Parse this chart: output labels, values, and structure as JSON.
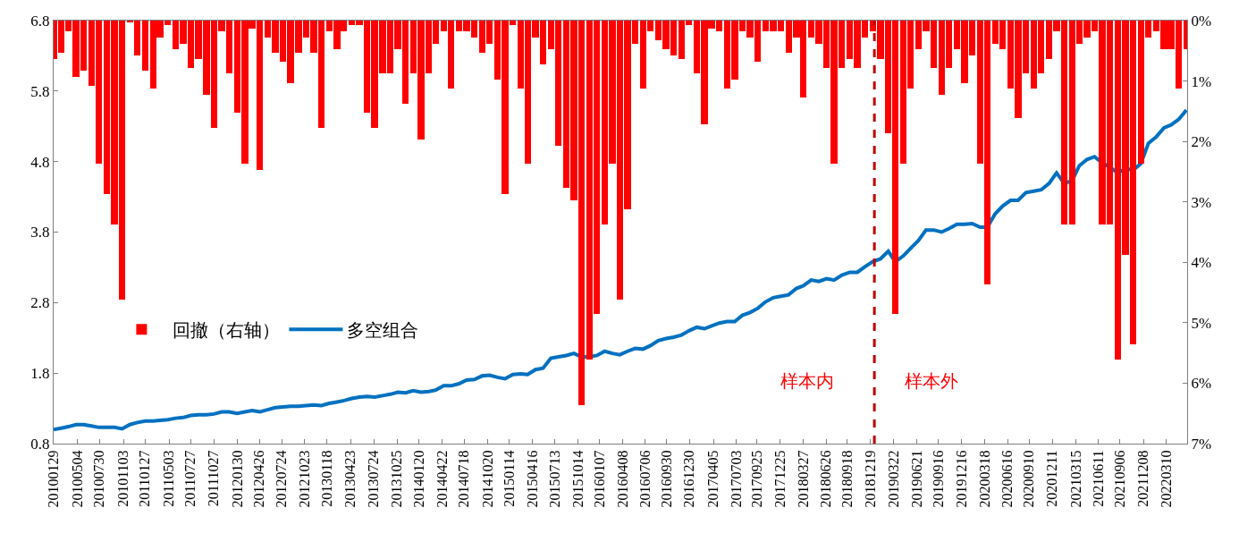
{
  "chart_data": {
    "type": "bar",
    "x": [
      "2010-01-29",
      "2010-02-28",
      "2010-03-28",
      "2010-04-28",
      "2010-05-28",
      "2010-06-28",
      "2010-07-28",
      "2010-08-28",
      "2010-09-28",
      "2010-10-28",
      "2010-11-28",
      "2010-12-28",
      "2011-01-28",
      "2011-02-28",
      "2011-03-28",
      "2011-04-28",
      "2011-05-28",
      "2011-06-28",
      "2011-07-28",
      "2011-08-28",
      "2011-09-28",
      "2011-10-28",
      "2011-11-28",
      "2011-12-28",
      "2012-01-28",
      "2012-02-28",
      "2012-03-28",
      "2012-04-28",
      "2012-05-28",
      "2012-06-28",
      "2012-07-28",
      "2012-08-28",
      "2012-09-28",
      "2012-10-28",
      "2012-11-28",
      "2012-12-28",
      "2013-01-28",
      "2013-02-28",
      "2013-03-28",
      "2013-04-28",
      "2013-05-28",
      "2013-06-28",
      "2013-07-28",
      "2013-08-28",
      "2013-09-28",
      "2013-10-28",
      "2013-11-28",
      "2013-12-28",
      "2014-01-28",
      "2014-02-28",
      "2014-03-28",
      "2014-04-28",
      "2014-05-28",
      "2014-06-28",
      "2014-07-28",
      "2014-08-28",
      "2014-09-28",
      "2014-10-28",
      "2014-11-28",
      "2014-12-28",
      "2015-01-28",
      "2015-02-28",
      "2015-03-28",
      "2015-04-28",
      "2015-05-28",
      "2015-06-28",
      "2015-07-28",
      "2015-08-28",
      "2015-09-28",
      "2015-10-28",
      "2015-11-28",
      "2015-12-28",
      "2016-01-28",
      "2016-02-28",
      "2016-03-28",
      "2016-04-28",
      "2016-05-28",
      "2016-06-28",
      "2016-07-28",
      "2016-08-28",
      "2016-09-28",
      "2016-10-28",
      "2016-11-28",
      "2016-12-28",
      "2017-01-28",
      "2017-02-28",
      "2017-03-28",
      "2017-04-28",
      "2017-05-28",
      "2017-06-28",
      "2017-07-28",
      "2017-08-28",
      "2017-09-28",
      "2017-10-28",
      "2017-11-28",
      "2017-12-28",
      "2018-01-28",
      "2018-02-28",
      "2018-03-28",
      "2018-04-28",
      "2018-05-28",
      "2018-06-28",
      "2018-07-28",
      "2018-08-28",
      "2018-09-28",
      "2018-10-28",
      "2018-11-28",
      "2018-12-28",
      "2019-01-28",
      "2019-02-28",
      "2019-03-28",
      "2019-04-28",
      "2019-05-28",
      "2019-06-28",
      "2019-07-28",
      "2019-08-28",
      "2019-09-28",
      "2019-10-28",
      "2019-11-28",
      "2019-12-28",
      "2020-01-28",
      "2020-02-28",
      "2020-03-28",
      "2020-04-28",
      "2020-05-28",
      "2020-06-28",
      "2020-07-28",
      "2020-08-28",
      "2020-09-28",
      "2020-10-28",
      "2020-11-28",
      "2020-12-28",
      "2021-01-28",
      "2021-02-28",
      "2021-03-28",
      "2021-04-28",
      "2021-05-28",
      "2021-06-28",
      "2021-07-28",
      "2021-08-28",
      "2021-09-28",
      "2021-10-28",
      "2021-11-28",
      "2021-12-28",
      "2022-01-28",
      "2022-02-28",
      "2022-03-28",
      "2022-04-28",
      "2022-05-28"
    ],
    "series": [
      {
        "name": "回撤（右轴）",
        "axis": "y2",
        "color": "#ff0000",
        "values": [
          0.63,
          0.53,
          0.18,
          0.93,
          0.83,
          1.08,
          2.37,
          2.87,
          3.37,
          4.61,
          0.03,
          0.58,
          0.83,
          1.13,
          0.28,
          0.08,
          0.48,
          0.38,
          0.78,
          0.63,
          1.23,
          1.77,
          0.18,
          0.88,
          1.52,
          2.37,
          0.13,
          2.47,
          0.28,
          0.53,
          0.68,
          1.03,
          0.53,
          0.28,
          0.53,
          1.77,
          0.18,
          0.48,
          0.18,
          0.08,
          0.08,
          1.52,
          1.77,
          0.88,
          0.88,
          0.48,
          1.38,
          0.88,
          1.97,
          0.88,
          0.38,
          0.18,
          1.13,
          0.18,
          0.18,
          0.28,
          0.53,
          0.38,
          0.98,
          2.87,
          0.08,
          1.13,
          2.37,
          0.28,
          0.73,
          0.48,
          2.07,
          2.77,
          2.97,
          6.36,
          5.61,
          4.86,
          3.37,
          2.37,
          4.61,
          3.12,
          0.38,
          1.13,
          0.18,
          0.33,
          0.48,
          0.58,
          0.63,
          0.08,
          0.88,
          1.72,
          0.13,
          0.18,
          1.13,
          0.98,
          0.18,
          0.28,
          0.68,
          0.18,
          0.18,
          0.18,
          0.53,
          0.28,
          1.28,
          0.28,
          0.38,
          0.78,
          2.37,
          0.78,
          0.63,
          0.78,
          0.28,
          0.18,
          0.63,
          1.87,
          4.86,
          2.37,
          1.13,
          0.48,
          0.18,
          0.78,
          1.23,
          0.78,
          0.48,
          1.03,
          0.58,
          2.37,
          4.36,
          0.38,
          0.48,
          1.13,
          1.62,
          0.88,
          1.13,
          0.88,
          0.63,
          0.18,
          3.37,
          3.37,
          0.38,
          0.28,
          0.18,
          3.37,
          3.37,
          5.61,
          3.87,
          5.36,
          2.37,
          0.28,
          0.18,
          0.48,
          0.48,
          1.13,
          0.48
        ]
      },
      {
        "name": "多空组合",
        "type": "line",
        "color": "#0070c0",
        "values": [
          1.0,
          1.02,
          1.04,
          1.07,
          1.07,
          1.05,
          1.03,
          1.03,
          1.03,
          1.01,
          1.07,
          1.1,
          1.12,
          1.12,
          1.13,
          1.14,
          1.16,
          1.17,
          1.2,
          1.21,
          1.21,
          1.22,
          1.25,
          1.25,
          1.23,
          1.25,
          1.27,
          1.25,
          1.28,
          1.31,
          1.32,
          1.33,
          1.33,
          1.34,
          1.35,
          1.34,
          1.37,
          1.39,
          1.41,
          1.44,
          1.46,
          1.47,
          1.46,
          1.48,
          1.5,
          1.53,
          1.52,
          1.55,
          1.53,
          1.54,
          1.56,
          1.62,
          1.62,
          1.65,
          1.7,
          1.71,
          1.76,
          1.77,
          1.74,
          1.72,
          1.78,
          1.79,
          1.78,
          1.85,
          1.87,
          2.01,
          2.03,
          2.05,
          2.08,
          2.03,
          2.03,
          2.05,
          2.11,
          2.08,
          2.06,
          2.11,
          2.15,
          2.14,
          2.19,
          2.26,
          2.29,
          2.31,
          2.34,
          2.4,
          2.45,
          2.43,
          2.47,
          2.51,
          2.53,
          2.53,
          2.62,
          2.66,
          2.72,
          2.81,
          2.87,
          2.89,
          2.91,
          3.0,
          3.04,
          3.12,
          3.1,
          3.14,
          3.12,
          3.19,
          3.23,
          3.23,
          3.31,
          3.38,
          3.42,
          3.53,
          3.38,
          3.46,
          3.57,
          3.68,
          3.83,
          3.83,
          3.8,
          3.85,
          3.91,
          3.91,
          3.92,
          3.87,
          3.87,
          4.06,
          4.17,
          4.25,
          4.25,
          4.36,
          4.38,
          4.4,
          4.49,
          4.64,
          4.49,
          4.53,
          4.74,
          4.83,
          4.87,
          4.78,
          4.72,
          4.64,
          4.7,
          4.68,
          4.77,
          5.06,
          5.15,
          5.28,
          5.32,
          5.4,
          5.53
        ]
      }
    ],
    "xlim": [
      "2010-01-29",
      "2022-05-31"
    ],
    "xticks": [
      {
        "value": "2010-01-29",
        "label": "20100129"
      },
      {
        "value": "2010-05-04",
        "label": "20100504"
      },
      {
        "value": "2010-07-30",
        "label": "20100730"
      },
      {
        "value": "2010-11-03",
        "label": "20101103"
      },
      {
        "value": "2011-01-27",
        "label": "20110127"
      },
      {
        "value": "2011-05-03",
        "label": "20110503"
      },
      {
        "value": "2011-07-27",
        "label": "20110727"
      },
      {
        "value": "2011-10-27",
        "label": "20111027"
      },
      {
        "value": "2012-01-30",
        "label": "20120130"
      },
      {
        "value": "2012-04-26",
        "label": "20120426"
      },
      {
        "value": "2012-07-24",
        "label": "20120724"
      },
      {
        "value": "2012-10-23",
        "label": "20121023"
      },
      {
        "value": "2013-01-18",
        "label": "20130118"
      },
      {
        "value": "2013-04-23",
        "label": "20130423"
      },
      {
        "value": "2013-07-24",
        "label": "20130724"
      },
      {
        "value": "2013-10-25",
        "label": "20131025"
      },
      {
        "value": "2014-01-20",
        "label": "20140120"
      },
      {
        "value": "2014-04-22",
        "label": "20140422"
      },
      {
        "value": "2014-07-18",
        "label": "20140718"
      },
      {
        "value": "2014-10-20",
        "label": "20141020"
      },
      {
        "value": "2015-01-14",
        "label": "20150114"
      },
      {
        "value": "2015-04-16",
        "label": "20150416"
      },
      {
        "value": "2015-07-13",
        "label": "20150713"
      },
      {
        "value": "2015-10-14",
        "label": "20151014"
      },
      {
        "value": "2016-01-07",
        "label": "20160107"
      },
      {
        "value": "2016-04-08",
        "label": "20160408"
      },
      {
        "value": "2016-07-06",
        "label": "20160706"
      },
      {
        "value": "2016-09-30",
        "label": "20160930"
      },
      {
        "value": "2016-12-30",
        "label": "20161230"
      },
      {
        "value": "2017-04-05",
        "label": "20170405"
      },
      {
        "value": "2017-07-03",
        "label": "20170703"
      },
      {
        "value": "2017-09-25",
        "label": "20170925"
      },
      {
        "value": "2017-12-25",
        "label": "20171225"
      },
      {
        "value": "2018-03-27",
        "label": "20180327"
      },
      {
        "value": "2018-06-26",
        "label": "20180626"
      },
      {
        "value": "2018-09-18",
        "label": "20180918"
      },
      {
        "value": "2018-12-19",
        "label": "20181219"
      },
      {
        "value": "2019-03-22",
        "label": "20190322"
      },
      {
        "value": "2019-06-21",
        "label": "20190621"
      },
      {
        "value": "2019-09-16",
        "label": "20190916"
      },
      {
        "value": "2019-12-16",
        "label": "20191216"
      },
      {
        "value": "2020-03-18",
        "label": "20200318"
      },
      {
        "value": "2020-06-16",
        "label": "20200616"
      },
      {
        "value": "2020-09-10",
        "label": "20200910"
      },
      {
        "value": "2020-12-11",
        "label": "20201211"
      },
      {
        "value": "2021-03-15",
        "label": "20210315"
      },
      {
        "value": "2021-06-11",
        "label": "20210611"
      },
      {
        "value": "2021-09-06",
        "label": "20210906"
      },
      {
        "value": "2021-12-08",
        "label": "20211208"
      },
      {
        "value": "2022-03-10",
        "label": "20220310"
      }
    ],
    "ylim": [
      0.8,
      6.8
    ],
    "yticks": [
      0.8,
      1.8,
      2.8,
      3.8,
      4.8,
      5.8,
      6.8
    ],
    "y2lim": [
      7,
      0
    ],
    "y2ticks": [
      {
        "value": 0,
        "label": "0%"
      },
      {
        "value": 1,
        "label": "1%"
      },
      {
        "value": 2,
        "label": "2%"
      },
      {
        "value": 3,
        "label": "3%"
      },
      {
        "value": 4,
        "label": "4%"
      },
      {
        "value": 5,
        "label": "5%"
      },
      {
        "value": 6,
        "label": "6%"
      },
      {
        "value": 7,
        "label": "7%"
      }
    ],
    "ref_lines": [
      {
        "axis": "x",
        "value": "2019-01-04",
        "color": "#c00000",
        "line_style": "dashed"
      }
    ],
    "annotations": [
      "样本内",
      "样本外"
    ],
    "legend": "middle left"
  }
}
